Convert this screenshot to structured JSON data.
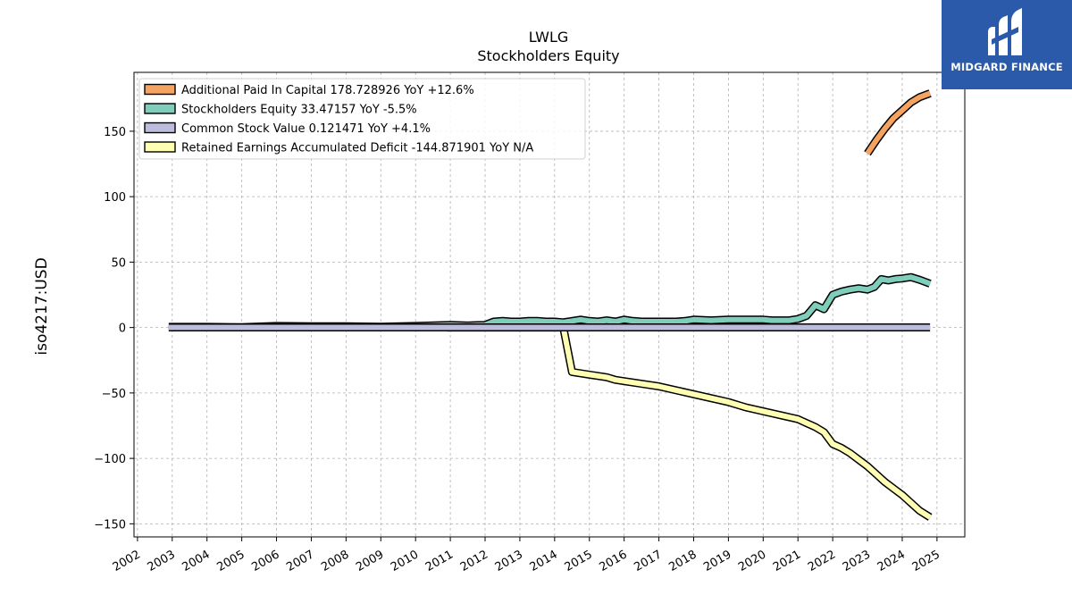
{
  "brand": {
    "name": "MIDGARD FINANCE",
    "color": "#2a5aa9"
  },
  "chart_data": {
    "type": "line",
    "title": "LWLG",
    "subtitle": "Stockholders  Equity",
    "xlabel": "",
    "ylabel": "iso4217:USD",
    "xlim": [
      2001.9,
      2025.8
    ],
    "ylim": [
      -160,
      195
    ],
    "x_ticks": [
      2002,
      2003,
      2004,
      2005,
      2006,
      2007,
      2008,
      2009,
      2010,
      2011,
      2012,
      2013,
      2014,
      2015,
      2016,
      2017,
      2018,
      2019,
      2020,
      2021,
      2022,
      2023,
      2024,
      2025
    ],
    "y_ticks": [
      -150,
      -100,
      -50,
      0,
      50,
      100,
      150
    ],
    "grid": true,
    "legend_position": "top-left",
    "series": [
      {
        "name": "Additional Paid In Capital",
        "legend": "Additional Paid In Capital  178.728926 YoY +12.6%",
        "color": "#f4a460",
        "x": [
          2023.0,
          2023.25,
          2023.5,
          2023.75,
          2024.0,
          2024.25,
          2024.5,
          2024.8
        ],
        "y": [
          133,
          143,
          152,
          160,
          166,
          172,
          176,
          179
        ]
      },
      {
        "name": "Stockholders Equity",
        "legend": "Stockholders Equity  33.47157 YoY -5.5%",
        "color": "#7fcdbb",
        "x": [
          2002.9,
          2004.0,
          2005.0,
          2006.0,
          2007.0,
          2008.0,
          2009.0,
          2010.0,
          2011.0,
          2011.5,
          2011.75,
          2012.0,
          2012.25,
          2012.5,
          2012.75,
          2013.0,
          2013.25,
          2013.5,
          2013.75,
          2014.0,
          2014.25,
          2014.5,
          2014.75,
          2015.0,
          2015.25,
          2015.5,
          2015.75,
          2016.0,
          2016.25,
          2016.5,
          2016.75,
          2017.0,
          2017.25,
          2017.5,
          2017.75,
          2018.0,
          2018.5,
          2019.0,
          2019.5,
          2020.0,
          2020.25,
          2020.5,
          2020.75,
          2021.0,
          2021.25,
          2021.5,
          2021.75,
          2022.0,
          2022.25,
          2022.5,
          2022.75,
          2023.0,
          2023.2,
          2023.4,
          2023.6,
          2023.8,
          2024.0,
          2024.25,
          2024.5,
          2024.8
        ],
        "y": [
          0.5,
          0.5,
          0.2,
          1.2,
          1.0,
          1.0,
          0.6,
          1.2,
          2.0,
          1.5,
          1.8,
          2.0,
          4.5,
          5.0,
          4.5,
          4.5,
          5.0,
          5.0,
          4.5,
          4.5,
          4.0,
          5.0,
          6.0,
          5.0,
          4.5,
          5.5,
          4.5,
          6.0,
          5.0,
          4.5,
          4.5,
          4.5,
          4.5,
          4.5,
          5.0,
          6.0,
          5.5,
          6.0,
          6.0,
          6.0,
          5.5,
          5.5,
          5.5,
          6.5,
          9.0,
          17.0,
          14.0,
          25.0,
          27.5,
          29.0,
          30.0,
          29.0,
          31.0,
          37.0,
          36.0,
          37.0,
          37.5,
          38.5,
          36.5,
          33.5
        ]
      },
      {
        "name": "Common Stock Value",
        "legend": "Common Stock Value  0.121471 YoY +4.1%",
        "color": "#bcbddc",
        "x": [
          2002.9,
          2024.8
        ],
        "y": [
          0.121,
          0.121
        ]
      },
      {
        "name": "Retained Earnings Accumulated Deficit",
        "legend": "Retained Earnings Accumulated Deficit  -144.871901 YoY N/A",
        "color": "#ffffb3",
        "x": [
          2010.9,
          2014.25,
          2014.5,
          2015.0,
          2015.5,
          2015.75,
          2016.0,
          2016.5,
          2017.0,
          2017.5,
          2018.0,
          2018.5,
          2019.0,
          2019.5,
          2020.0,
          2020.5,
          2021.0,
          2021.25,
          2021.5,
          2021.75,
          2022.0,
          2022.25,
          2022.5,
          2022.75,
          2023.0,
          2023.25,
          2023.5,
          2023.75,
          2024.0,
          2024.25,
          2024.5,
          2024.8
        ],
        "y": [
          0,
          0,
          -34,
          -36,
          -38,
          -40,
          -41,
          -43,
          -45,
          -48,
          -51,
          -54,
          -57,
          -61,
          -64,
          -67,
          -70,
          -73,
          -76,
          -80,
          -89,
          -92,
          -96,
          -101,
          -106,
          -112,
          -118,
          -123,
          -128,
          -134,
          -140,
          -145
        ]
      }
    ]
  }
}
